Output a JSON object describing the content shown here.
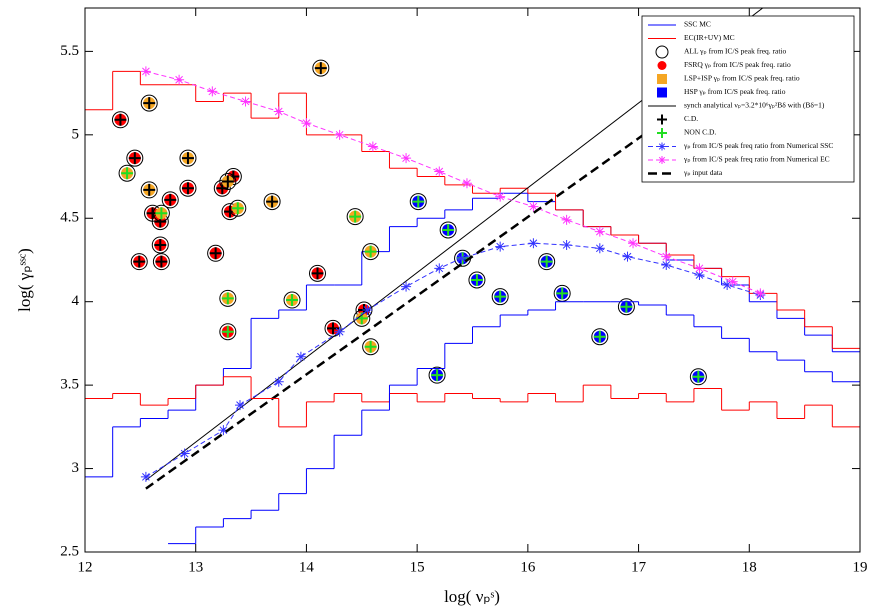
{
  "chart_data": {
    "type": "scatter",
    "x_label": "log( νₚˢ)",
    "y_label": "log( γₚˢˢᶜ)",
    "xlim": [
      12,
      19
    ],
    "ylim": [
      2.5,
      5.76
    ],
    "xticks": [
      12,
      13,
      14,
      15,
      16,
      17,
      18,
      19
    ],
    "yticks": [
      2.5,
      3,
      3.5,
      4,
      4.5,
      5,
      5.5
    ],
    "legend": "upper right",
    "series": [
      {
        "name": "SSC MC",
        "type": "step",
        "color": "#0000ff",
        "bins": [
          12,
          12.25,
          12.5,
          12.75,
          13,
          13.25,
          13.5,
          13.75,
          14,
          14.25,
          14.5,
          14.75,
          15,
          15.25,
          15.5,
          15.75,
          16,
          16.25,
          16.5,
          16.75,
          17,
          17.25,
          17.5,
          17.75,
          18,
          18.25,
          18.5,
          18.75,
          19
        ],
        "values": [
          2.95,
          3.25,
          3.3,
          3.35,
          3.5,
          3.6,
          3.9,
          3.95,
          4.1,
          4.1,
          4.3,
          4.45,
          4.5,
          4.55,
          4.62,
          4.65,
          4.6,
          4.55,
          4.45,
          4.4,
          4.35,
          4.25,
          4.2,
          4.1,
          4.0,
          3.9,
          3.8,
          3.7
        ]
      },
      {
        "name": "EC(IR+UV) MC",
        "type": "step",
        "color": "#ff0000",
        "bins": [
          12,
          12.25,
          12.5,
          12.75,
          13,
          13.25,
          13.5,
          13.75,
          14,
          14.25,
          14.5,
          14.75,
          15,
          15.25,
          15.5,
          15.75,
          16,
          16.25,
          16.5,
          16.75,
          17,
          17.25,
          17.5,
          17.75,
          18,
          18.25,
          18.5,
          18.75,
          19
        ],
        "values": [
          5.15,
          5.38,
          5.3,
          5.3,
          5.2,
          5.25,
          5.1,
          5.25,
          5.0,
          5.0,
          4.9,
          4.8,
          4.75,
          4.7,
          4.65,
          4.68,
          4.65,
          4.55,
          4.45,
          4.4,
          4.35,
          4.28,
          4.2,
          4.15,
          4.05,
          3.95,
          3.85,
          3.72
        ]
      },
      {
        "name": "ALL γₚ from IC/S peak freq. ratio",
        "type": "marker",
        "marker": "open-circle",
        "color": "#000000",
        "x": [],
        "values": []
      },
      {
        "name": "FSRQ γₚ from IC/S peak freq. ratio",
        "type": "points",
        "marker": "circle",
        "color": "#ff0000",
        "x": [
          12.32,
          12.45,
          12.49,
          12.61,
          12.68,
          12.68,
          12.69,
          12.77,
          12.93,
          13.18,
          13.24,
          13.31,
          13.34,
          14.1,
          14.24,
          14.52,
          13.29
        ],
        "values": [
          5.09,
          4.86,
          4.24,
          4.53,
          4.48,
          4.34,
          4.24,
          4.61,
          4.68,
          4.29,
          4.68,
          4.54,
          4.75,
          4.17,
          3.84,
          3.95,
          3.82
        ],
        "cross_colors": [
          "#000",
          "#000",
          "#000",
          "#000",
          "#000",
          "#000",
          "#000",
          "#000",
          "#000",
          "#000",
          "#000",
          "#000",
          "#000",
          "#000",
          "#000",
          "#000",
          "#22dd22"
        ]
      },
      {
        "name": "LSP+ISP γₚ from IC/S peak freq. ratio",
        "type": "points",
        "marker": "circle",
        "color": "#f5a623",
        "x": [
          12.38,
          12.58,
          12.58,
          12.69,
          12.93,
          13.29,
          13.38,
          13.69,
          13.87,
          14.13,
          14.44,
          14.58,
          14.58,
          14.5,
          13.29
        ],
        "values": [
          4.77,
          5.19,
          4.67,
          4.53,
          4.86,
          4.02,
          4.56,
          4.6,
          4.01,
          5.4,
          4.51,
          4.3,
          3.73,
          3.9,
          4.72
        ],
        "cross_colors": [
          "#22dd22",
          "#000",
          "#000",
          "#22dd22",
          "#000",
          "#22dd22",
          "#22dd22",
          "#000",
          "#22dd22",
          "#000",
          "#22dd22",
          "#22dd22",
          "#22dd22",
          "#22dd22",
          "#000"
        ]
      },
      {
        "name": "HSP γₚ from IC/S peak freq. ratio",
        "type": "points",
        "marker": "circle",
        "color": "#0000ff",
        "x": [
          15.01,
          15.28,
          15.41,
          15.54,
          15.75,
          16.17,
          16.31,
          16.89,
          16.65,
          15.18,
          17.54
        ],
        "values": [
          4.6,
          4.43,
          4.26,
          4.13,
          4.03,
          4.24,
          4.05,
          3.97,
          3.79,
          3.56,
          3.55
        ],
        "cross_colors": [
          "#22dd22",
          "#22dd22",
          "#22dd22",
          "#22dd22",
          "#22dd22",
          "#22dd22",
          "#22dd22",
          "#22dd22",
          "#22dd22",
          "#22dd22",
          "#22dd22"
        ]
      },
      {
        "name": "synch analytical νₚ=3.2*10⁶γₚ²Bδ with  (Bδ=1)",
        "type": "line",
        "color": "#000000",
        "x": [
          12.55,
          18.2
        ],
        "values": [
          2.93,
          5.8
        ]
      },
      {
        "name": "C.D.",
        "type": "marker",
        "marker": "cross",
        "color": "#000000",
        "x": [],
        "values": []
      },
      {
        "name": "NON C.D.",
        "type": "marker",
        "marker": "cross",
        "color": "#22dd22",
        "x": [],
        "values": []
      },
      {
        "name": "γₚ from IC/S peak freq ratio  from Numerical SSC",
        "type": "line",
        "marker": "star",
        "dash": "5 3",
        "color": "#3333ff",
        "x": [
          12.55,
          12.9,
          13.25,
          13.4,
          13.75,
          13.95,
          14.3,
          14.55,
          14.9,
          15.2,
          15.4,
          15.75,
          16.05,
          16.35,
          16.65,
          16.9,
          17.25,
          17.55,
          17.8,
          18.1
        ],
        "values": [
          2.95,
          3.09,
          3.23,
          3.38,
          3.52,
          3.67,
          3.82,
          3.95,
          4.09,
          4.2,
          4.26,
          4.33,
          4.35,
          4.34,
          4.32,
          4.27,
          4.22,
          4.16,
          4.1,
          4.04
        ]
      },
      {
        "name": "γₚ from IC/S peak freq ratio  from Numerical EC",
        "type": "line",
        "marker": "star",
        "dash": "5 3",
        "color": "#ff33ff",
        "x": [
          12.55,
          12.85,
          13.15,
          13.45,
          13.75,
          14.0,
          14.3,
          14.6,
          14.9,
          15.2,
          15.45,
          15.75,
          16.05,
          16.35,
          16.65,
          16.95,
          17.25,
          17.55,
          17.85,
          18.1
        ],
        "values": [
          5.38,
          5.33,
          5.26,
          5.2,
          5.14,
          5.07,
          5.0,
          4.93,
          4.86,
          4.78,
          4.71,
          4.63,
          4.57,
          4.49,
          4.42,
          4.35,
          4.27,
          4.2,
          4.12,
          4.05
        ]
      },
      {
        "name": "γₚ input data",
        "type": "line",
        "dash": "9 5",
        "width": 2.5,
        "color": "#000000",
        "x": [
          12.55,
          18.4
        ],
        "values": [
          2.88,
          5.64
        ]
      },
      {
        "type": "step",
        "color": "#ff0000",
        "bins": [
          12,
          12.25,
          12.5,
          12.75,
          13,
          13.25,
          13.5,
          13.75,
          14,
          14.25,
          14.5,
          14.75,
          15,
          15.25,
          15.5,
          15.75,
          16,
          16.25,
          16.5,
          16.75,
          17,
          17.25,
          17.5,
          17.75,
          18,
          18.25,
          18.5,
          18.75,
          19
        ],
        "values": [
          3.42,
          3.45,
          3.38,
          3.42,
          3.5,
          3.55,
          3.42,
          3.25,
          3.4,
          3.45,
          3.4,
          3.45,
          3.4,
          3.45,
          3.42,
          3.4,
          3.45,
          3.4,
          3.5,
          3.42,
          3.45,
          3.4,
          3.48,
          3.35,
          3.4,
          3.3,
          3.38,
          3.25
        ]
      },
      {
        "type": "step",
        "color": "#0000ff",
        "bins": [
          12.75,
          13,
          13.25,
          13.5,
          13.75,
          14,
          14.25,
          14.5,
          14.75,
          15,
          15.25,
          15.5,
          15.75,
          16,
          16.25,
          16.5,
          16.75,
          17,
          17.25,
          17.5,
          17.75,
          18,
          18.25,
          18.5,
          18.75,
          19
        ],
        "values": [
          2.55,
          2.65,
          2.7,
          2.75,
          2.85,
          3.0,
          3.2,
          3.35,
          3.5,
          3.6,
          3.75,
          3.85,
          3.92,
          3.95,
          4.0,
          4.0,
          4.0,
          3.98,
          3.92,
          3.85,
          3.78,
          3.7,
          3.65,
          3.58,
          3.52
        ]
      }
    ]
  }
}
